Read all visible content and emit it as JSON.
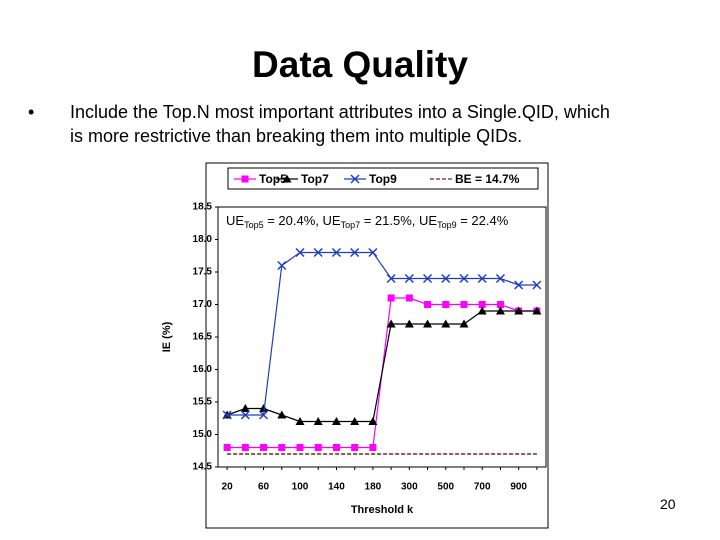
{
  "slide": {
    "title": "Data Quality",
    "bullet": [
      "Include the Top.N most important attributes into a Single.QID, which",
      "is more restrictive than breaking them into multiple QIDs."
    ],
    "page_number": "20"
  },
  "chart_data": {
    "type": "line",
    "categories": [
      "20",
      null,
      "60",
      null,
      "100",
      null,
      "140",
      null,
      "180",
      null,
      "300",
      null,
      "500",
      null,
      "700",
      null,
      "900",
      null
    ],
    "series": [
      {
        "name": "Top5",
        "color": "#ff00ff",
        "marker": "square",
        "values": [
          14.8,
          14.8,
          14.8,
          14.8,
          14.8,
          14.8,
          14.8,
          14.8,
          14.8,
          17.1,
          17.1,
          17.0,
          17.0,
          17.0,
          17.0,
          17.0,
          16.9,
          16.9
        ]
      },
      {
        "name": "Top7",
        "color": "#000000",
        "marker": "triangle",
        "values": [
          15.3,
          15.4,
          15.4,
          15.3,
          15.2,
          15.2,
          15.2,
          15.2,
          15.2,
          16.7,
          16.7,
          16.7,
          16.7,
          16.7,
          16.9,
          16.9,
          16.9,
          16.9
        ]
      },
      {
        "name": "Top9",
        "color": "#1f3fbf",
        "marker": "x",
        "values": [
          15.3,
          15.3,
          15.3,
          17.6,
          17.8,
          17.8,
          17.8,
          17.8,
          17.8,
          17.4,
          17.4,
          17.4,
          17.4,
          17.4,
          17.4,
          17.4,
          17.3,
          17.3
        ]
      },
      {
        "name": "BE = 14.7%",
        "color": "#7f1f1f",
        "marker": "none",
        "dashed": true,
        "values": [
          14.7,
          14.7,
          14.7,
          14.7,
          14.7,
          14.7,
          14.7,
          14.7,
          14.7,
          14.7,
          14.7,
          14.7,
          14.7,
          14.7,
          14.7,
          14.7,
          14.7,
          14.7
        ]
      }
    ],
    "annotation": [
      "UE",
      "Top5",
      " = 20.4%, UE",
      "Top7",
      " = 21.5%, UE",
      "Top9",
      " = 22.4%"
    ],
    "y_label": "IE (%)",
    "x_label": "Threshold k",
    "ylim": [
      14.5,
      18.5
    ],
    "yticks": [
      14.5,
      {
        "value": 15,
        "label": "15.0"
      },
      15.5,
      {
        "value": 16,
        "label": "16.0"
      },
      16.5,
      {
        "value": 17,
        "label": "17.0"
      },
      17.5,
      {
        "value": 18,
        "label": "18.0"
      },
      18.5
    ]
  }
}
